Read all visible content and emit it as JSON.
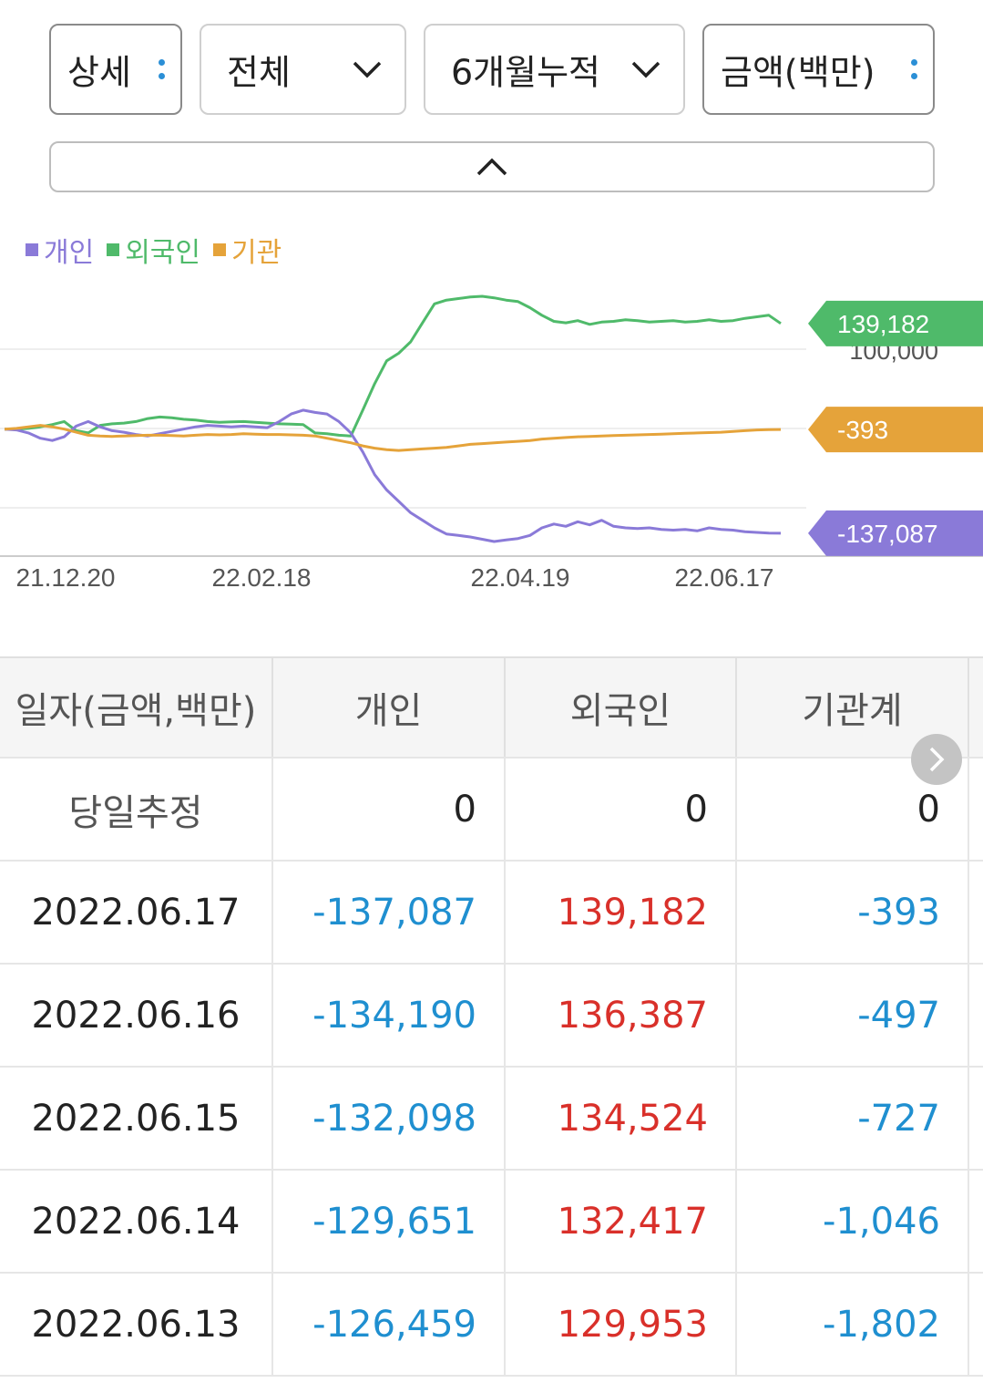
{
  "filters": {
    "view": "상세",
    "scope": "전체",
    "period": "6개월누적",
    "unit": "금액(백만)"
  },
  "legend": [
    {
      "name": "개인",
      "color": "#8a7ad8"
    },
    {
      "name": "외국인",
      "color": "#4fba6a"
    },
    {
      "name": "기관",
      "color": "#e5a33a"
    }
  ],
  "chart_data": {
    "type": "line",
    "x_ticks": [
      "21.12.20",
      "22.02.18",
      "22.04.19",
      "22.06.17"
    ],
    "y_reference": "100,000",
    "grid": true,
    "series": [
      {
        "name": "외국인",
        "color": "#4fba6a",
        "last_label": "139,182",
        "values": [
          0,
          0,
          1000,
          3000,
          6000,
          10000,
          -2000,
          -5000,
          5000,
          7000,
          8000,
          10000,
          14000,
          16000,
          15000,
          13000,
          12000,
          10000,
          9000,
          9500,
          10000,
          9000,
          8000,
          7000,
          6500,
          6000,
          -5000,
          -6000,
          -8000,
          -9000,
          25000,
          60000,
          90000,
          100000,
          115000,
          140000,
          165000,
          170000,
          172000,
          174000,
          175000,
          173000,
          170000,
          168000,
          160000,
          150000,
          142000,
          140000,
          143000,
          138000,
          141000,
          142000,
          144000,
          143000,
          141000,
          142000,
          143000,
          141000,
          142000,
          144000,
          142000,
          143000,
          146000,
          148000,
          150000,
          139182
        ]
      },
      {
        "name": "개인",
        "color": "#8a7ad8",
        "last_label": "-137,087",
        "values": [
          0,
          -1000,
          -5000,
          -12000,
          -15000,
          -10000,
          4000,
          10000,
          3000,
          -2000,
          -4000,
          -7000,
          -9000,
          -6000,
          -3000,
          0,
          3000,
          5000,
          4000,
          3000,
          4000,
          3000,
          2000,
          10000,
          20000,
          25000,
          22000,
          20000,
          10000,
          -5000,
          -30000,
          -60000,
          -80000,
          -95000,
          -110000,
          -120000,
          -130000,
          -138000,
          -140000,
          -142000,
          -145000,
          -148000,
          -146000,
          -144000,
          -140000,
          -130000,
          -125000,
          -128000,
          -122000,
          -126000,
          -120000,
          -128000,
          -130000,
          -131000,
          -130000,
          -132000,
          -133000,
          -132000,
          -134000,
          -130000,
          -132000,
          -133000,
          -135000,
          -136000,
          -137000,
          -137087
        ]
      },
      {
        "name": "기관",
        "color": "#e5a33a",
        "last_label": "-393",
        "values": [
          0,
          1000,
          3000,
          5000,
          3000,
          0,
          -4000,
          -8000,
          -9000,
          -9500,
          -9000,
          -8500,
          -8000,
          -8000,
          -8500,
          -9000,
          -8000,
          -7000,
          -7500,
          -7000,
          -6000,
          -6500,
          -7000,
          -7000,
          -7500,
          -8000,
          -9000,
          -12000,
          -15000,
          -18000,
          -22000,
          -25000,
          -27000,
          -28000,
          -27000,
          -26000,
          -25000,
          -24000,
          -22000,
          -20000,
          -19000,
          -18000,
          -17000,
          -16000,
          -15000,
          -13000,
          -12000,
          -11000,
          -10000,
          -9500,
          -9000,
          -8500,
          -8000,
          -7500,
          -7000,
          -6500,
          -6000,
          -5500,
          -5000,
          -4500,
          -4000,
          -3000,
          -2000,
          -1000,
          -500,
          -393
        ]
      }
    ]
  },
  "table": {
    "headers": [
      "일자(금액,백만)",
      "개인",
      "외국인",
      "기관계"
    ],
    "today_row": {
      "label": "당일추정",
      "individual": "0",
      "foreign": "0",
      "institution": "0"
    },
    "rows": [
      {
        "date": "2022.06.17",
        "individual": "-137,087",
        "foreign": "139,182",
        "institution": "-393"
      },
      {
        "date": "2022.06.16",
        "individual": "-134,190",
        "foreign": "136,387",
        "institution": "-497"
      },
      {
        "date": "2022.06.15",
        "individual": "-132,098",
        "foreign": "134,524",
        "institution": "-727"
      },
      {
        "date": "2022.06.14",
        "individual": "-129,651",
        "foreign": "132,417",
        "institution": "-1,046"
      },
      {
        "date": "2022.06.13",
        "individual": "-126,459",
        "foreign": "129,953",
        "institution": "-1,802"
      }
    ]
  }
}
